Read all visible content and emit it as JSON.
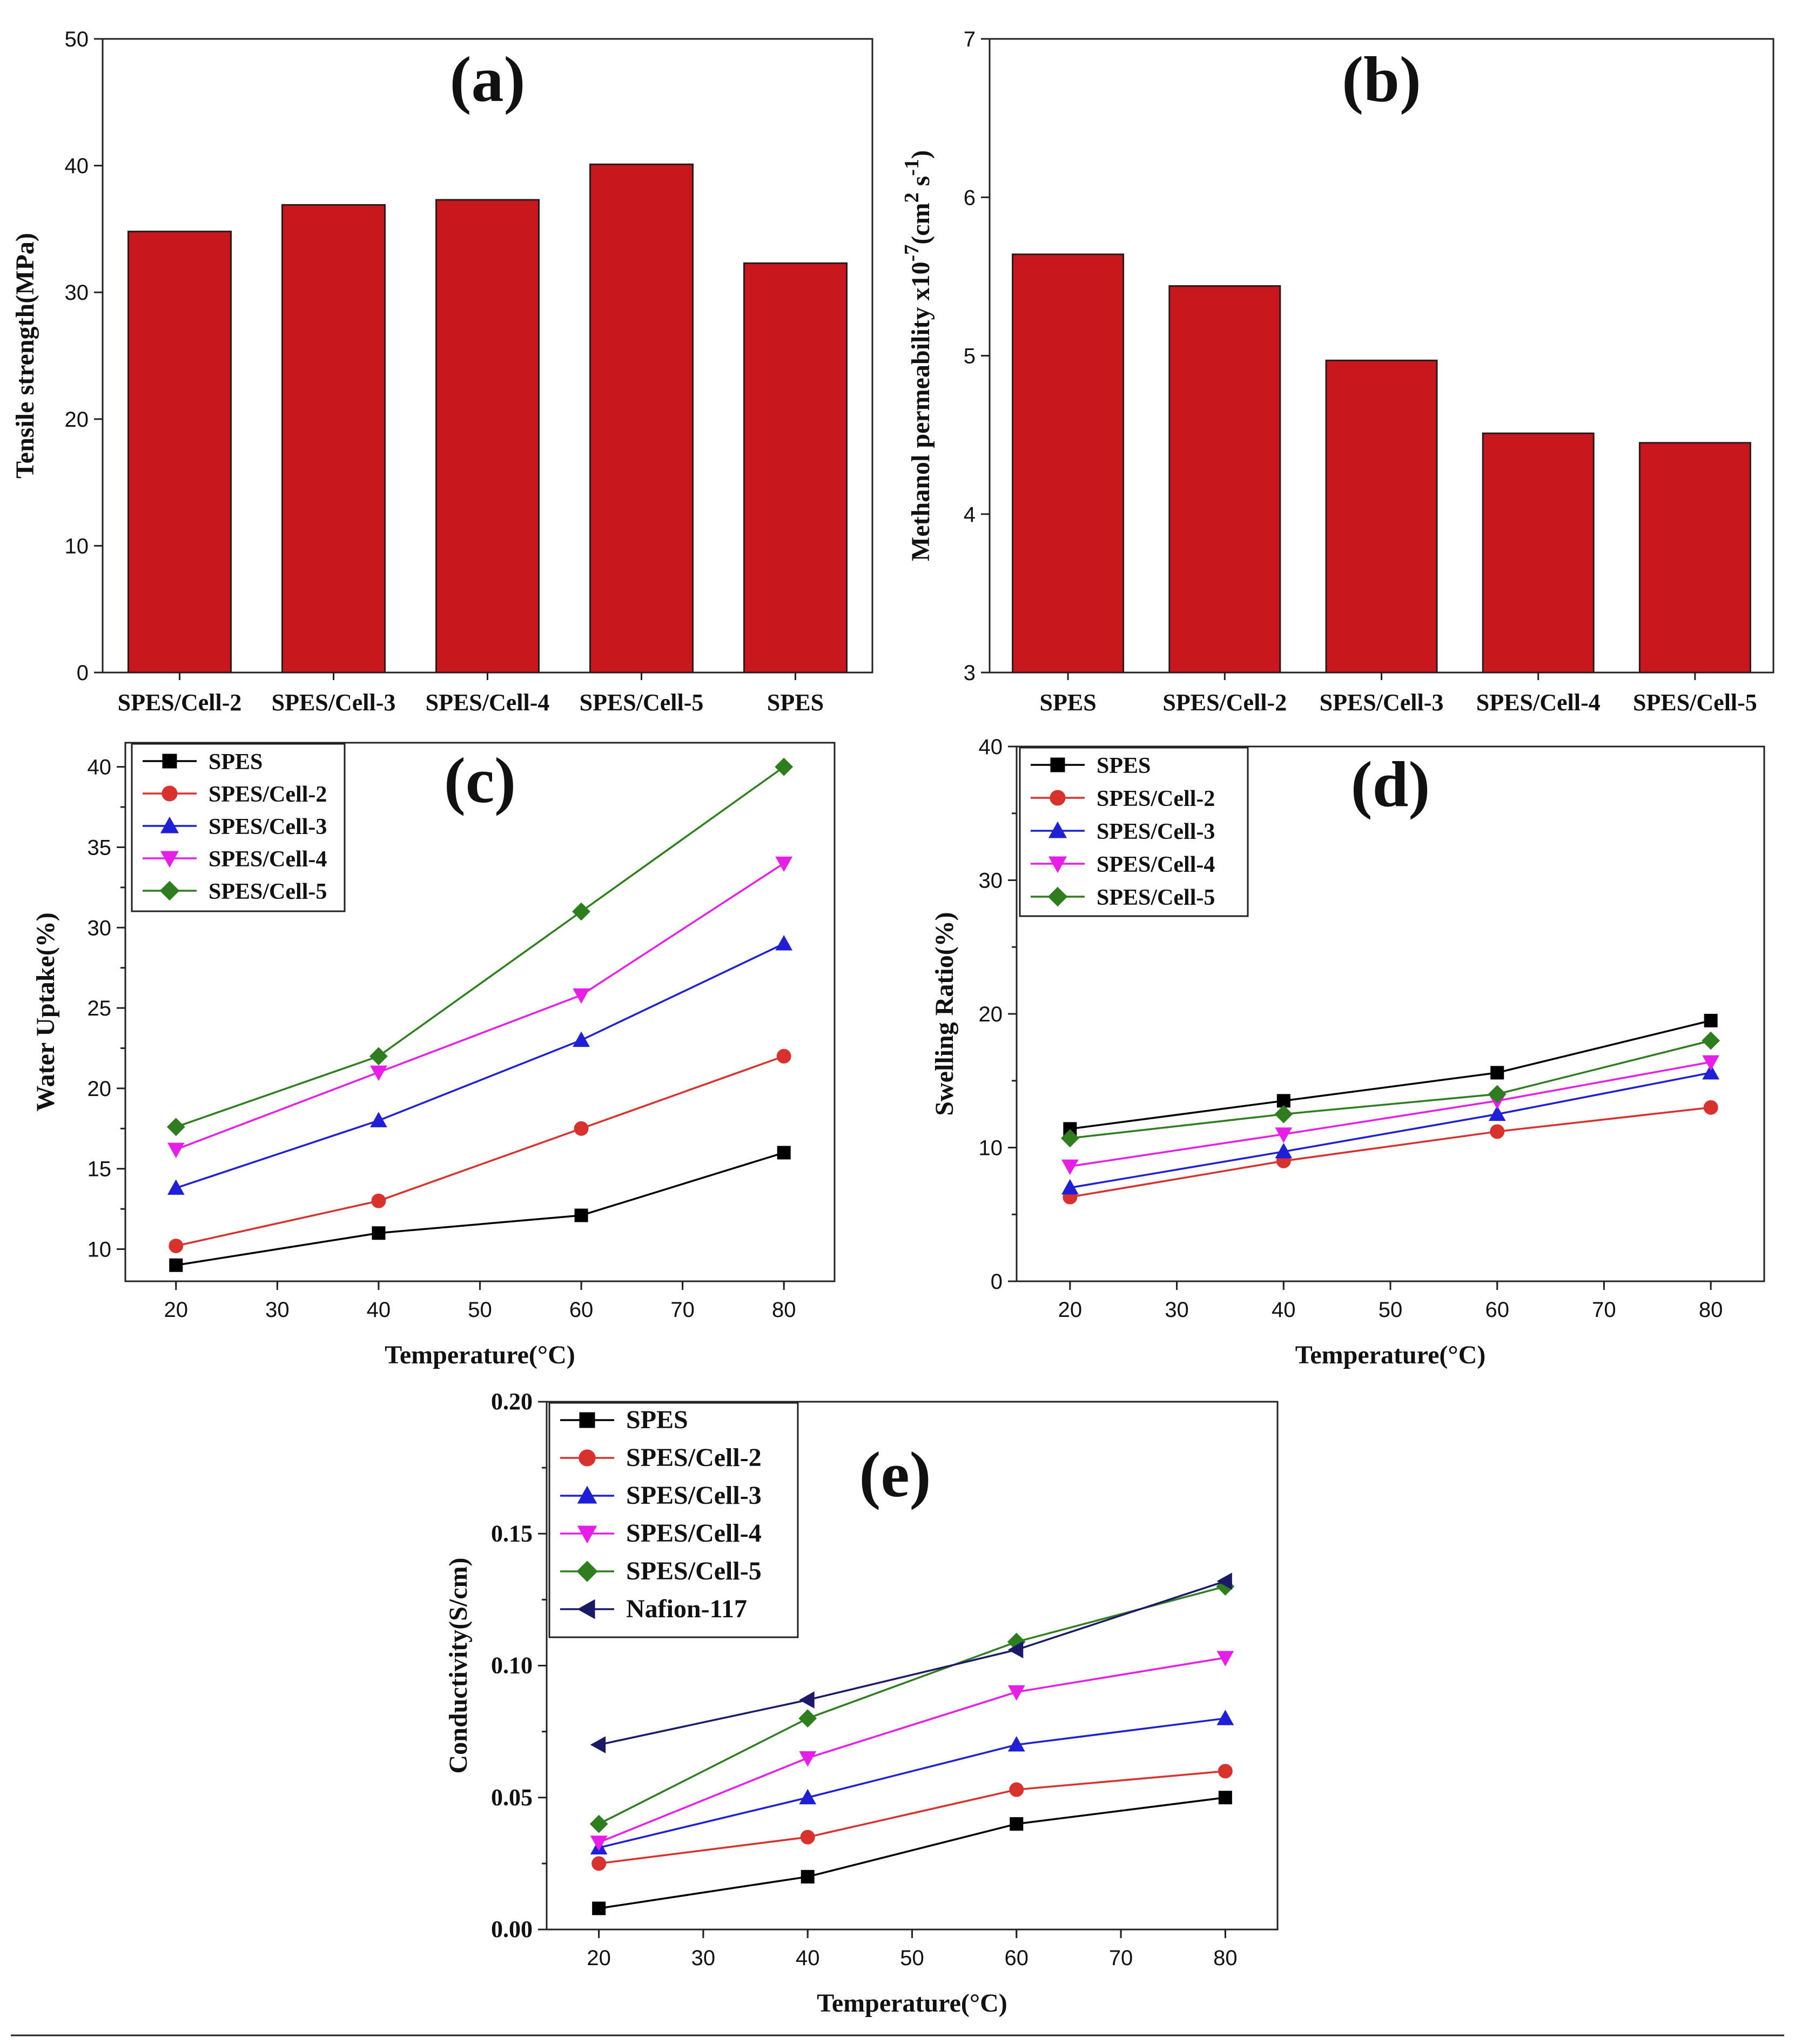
{
  "colors": {
    "bar": "#c8181e",
    "bar_edge": "#2a1a1a",
    "axis": "#222222",
    "SPES": "#000000",
    "SPES/Cell-2": "#d8322e",
    "SPES/Cell-3": "#1f1fd6",
    "SPES/Cell-4": "#e61ee6",
    "SPES/Cell-5": "#2e7d1e",
    "Nafion-117": "#1a1a66"
  },
  "chart_data": [
    {
      "id": "a",
      "panel_label": "(a)",
      "type": "bar",
      "title": "",
      "xlabel": "",
      "ylabel": "Tensile strength(MPa)",
      "ylim": [
        0,
        50
      ],
      "yticks": [
        "0",
        "10",
        "20",
        "30",
        "40",
        "50"
      ],
      "categories": [
        "SPES/Cell-2",
        "SPES/Cell-3",
        "SPES/Cell-4",
        "SPES/Cell-5",
        "SPES"
      ],
      "values": [
        34.8,
        36.9,
        37.3,
        40.1,
        32.3
      ],
      "grid": false
    },
    {
      "id": "b",
      "panel_label": "(b)",
      "type": "bar",
      "title": "",
      "xlabel": "",
      "ylabel": "Methanol permeability x10",
      "ylabel_exp": "-7",
      "ylabel_unit": "(cm",
      "ylabel_unit_exp": "2",
      "ylabel_unit2": " s",
      "ylabel_unit2_exp": "-1",
      "ylabel_close": ")",
      "ylim": [
        3,
        7
      ],
      "yticks": [
        "3",
        "4",
        "5",
        "6",
        "7"
      ],
      "categories": [
        "SPES",
        "SPES/Cell-2",
        "SPES/Cell-3",
        "SPES/Cell-4",
        "SPES/Cell-5"
      ],
      "values": [
        5.64,
        5.44,
        4.97,
        4.51,
        4.45
      ],
      "grid": false
    },
    {
      "id": "c",
      "panel_label": "(c)",
      "type": "line",
      "title": "",
      "xlabel": "Temperature(°C)",
      "ylabel": "Water Uptake(%)",
      "xlim": [
        15,
        85
      ],
      "ylim": [
        8,
        41.5
      ],
      "xticks": [
        "20",
        "30",
        "40",
        "50",
        "60",
        "70",
        "80"
      ],
      "yticks": [
        "10",
        "15",
        "20",
        "25",
        "30",
        "35",
        "40"
      ],
      "x": [
        20,
        40,
        60,
        80
      ],
      "legend": "top-left",
      "series": [
        {
          "name": "SPES",
          "marker": "square",
          "values": [
            9.0,
            11.0,
            12.1,
            16.0
          ]
        },
        {
          "name": "SPES/Cell-2",
          "marker": "circle",
          "values": [
            10.2,
            13.0,
            17.5,
            22.0
          ]
        },
        {
          "name": "SPES/Cell-3",
          "marker": "triangle-up",
          "values": [
            13.8,
            18.0,
            23.0,
            29.0
          ]
        },
        {
          "name": "SPES/Cell-4",
          "marker": "triangle-down",
          "values": [
            16.2,
            21.0,
            25.8,
            34.0
          ]
        },
        {
          "name": "SPES/Cell-5",
          "marker": "diamond",
          "values": [
            17.6,
            22.0,
            31.0,
            40.0
          ]
        }
      ],
      "grid": false
    },
    {
      "id": "d",
      "panel_label": "(d)",
      "type": "line",
      "title": "",
      "xlabel": "Temperature(°C)",
      "ylabel": "Swelling Ratio(%)",
      "xlim": [
        15,
        85
      ],
      "ylim": [
        0,
        40
      ],
      "xticks": [
        "20",
        "30",
        "40",
        "50",
        "60",
        "70",
        "80"
      ],
      "yticks": [
        "0",
        "10",
        "20",
        "30",
        "40"
      ],
      "x": [
        20,
        40,
        60,
        80
      ],
      "legend": "top-left",
      "series": [
        {
          "name": "SPES",
          "marker": "square",
          "values": [
            11.4,
            13.5,
            15.6,
            19.5
          ]
        },
        {
          "name": "SPES/Cell-2",
          "marker": "circle",
          "values": [
            6.3,
            9.0,
            11.2,
            13.0
          ]
        },
        {
          "name": "SPES/Cell-3",
          "marker": "triangle-up",
          "values": [
            7.0,
            9.7,
            12.5,
            15.6
          ]
        },
        {
          "name": "SPES/Cell-4",
          "marker": "triangle-down",
          "values": [
            8.6,
            11.0,
            13.5,
            16.4
          ]
        },
        {
          "name": "SPES/Cell-5",
          "marker": "diamond",
          "values": [
            10.7,
            12.5,
            14.0,
            18.0
          ]
        }
      ],
      "grid": false
    },
    {
      "id": "e",
      "panel_label": "(e)",
      "type": "line",
      "title": "",
      "xlabel": "Temperature(°C)",
      "ylabel": "Conductivity(S/cm)",
      "xlim": [
        15,
        85
      ],
      "ylim": [
        0,
        0.2
      ],
      "xticks": [
        "20",
        "30",
        "40",
        "50",
        "60",
        "70",
        "80"
      ],
      "yticks": [
        "0.00",
        "0.05",
        "0.10",
        "0.15",
        "0.20"
      ],
      "x": [
        20,
        40,
        60,
        80
      ],
      "legend": "top-left",
      "series": [
        {
          "name": "SPES",
          "marker": "square",
          "values": [
            0.008,
            0.02,
            0.04,
            0.05
          ]
        },
        {
          "name": "SPES/Cell-2",
          "marker": "circle",
          "values": [
            0.025,
            0.035,
            0.053,
            0.06
          ]
        },
        {
          "name": "SPES/Cell-3",
          "marker": "triangle-up",
          "values": [
            0.031,
            0.05,
            0.07,
            0.08
          ]
        },
        {
          "name": "SPES/Cell-4",
          "marker": "triangle-down",
          "values": [
            0.033,
            0.065,
            0.09,
            0.103
          ]
        },
        {
          "name": "SPES/Cell-5",
          "marker": "diamond",
          "values": [
            0.04,
            0.08,
            0.109,
            0.13
          ]
        },
        {
          "name": "Nafion-117",
          "marker": "triangle-left",
          "values": [
            0.07,
            0.087,
            0.106,
            0.132
          ]
        }
      ],
      "grid": false
    }
  ]
}
